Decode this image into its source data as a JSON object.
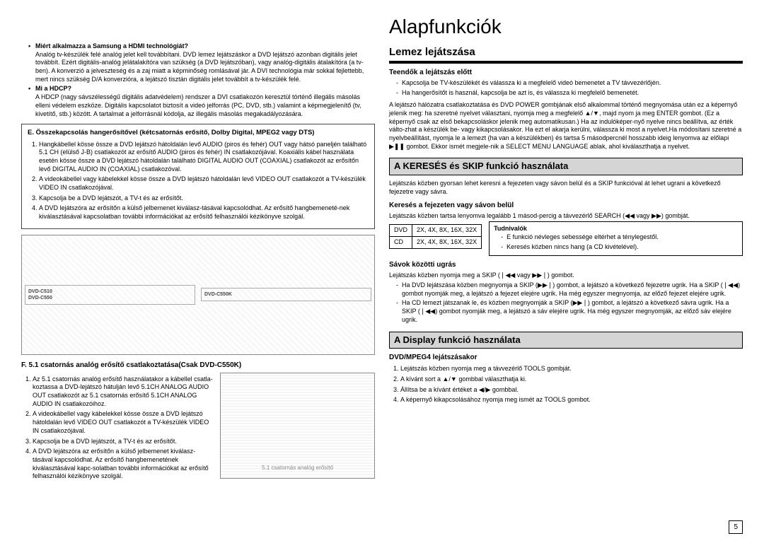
{
  "left": {
    "q1_title": "Miért alkalmazza a Samsung a HDMI technológiát?",
    "q1_body": "Analóg tv-készülék felé analóg jelet kell továbbítani. DVD lemez lejátszáskor a DVD lejátszó azonban digitális jelet továbbít. Ezért digitális-analóg jelátalakítóra van szükség (a DVD lejátszóban), vagy analóg-digitális átalakítóra (a tv-ben). A konverzió a jelveszteség és a zaj miatt a képminőség romlásával jár. A DVI technológia már sokkal fejlettebb, mert nincs szükség D/A konverzióra, a lejátszó tisztán digitális jelet továbbít a tv-készülék felé.",
    "q2_title": "Mi a HDCP?",
    "q2_body": "A HDCP (nagy sávszélességű digitális adatvédelem) rendszer a DVI csatlakozón keresztül történő illegális másolás elleni védelem eszköze. Digitális kapcsolatot biztosít a videó jelforrás (PC, DVD, stb.) valamint a képmegjelenítő (tv, kivetítő, stb.) között. A tartalmat a jelforrásnál kódolja, az illegális másolás megakadályozására.",
    "sectionE_title": "E. Összekapcsolás hangerősítővel (kétcsatornás erősítő, Dolby Digital, MPEG2 vagy DTS)",
    "sectionE_items": [
      "Hangkábellel kösse össze a DVD lejátszó hátoldalán levő AUDIO (piros és fehér) OUT vagy hátsó paneljén található 5.1 CH (elülső J-B) csatlakozót az erősítő AUDIO (piros és fehér) IN csatlakozójával. Koaxiális kábel használata esetén kösse össze a DVD lejátszó hátoldalán található DIGITAL AUDIO OUT (COAXIAL) csatlakozót az erősítőn levő DIGITAL AUDIO IN (COAXIAL) csatlakozóval.",
      "A videokábellel vagy kábelekkel kösse össze a DVD lejátszó hátoldalán levő VIDEO OUT csatlakozót a TV-készülék VIDEO IN csatlakozójával.",
      "Kapcsolja be a DVD lejátszót, a TV-t és az erősítőt.",
      "A DVD lejátszóra az erősítőn a külső jelbemenet kiválasz-tásával kapcsolódhat. Az erősítő hangbemeneté-nek kiválasztásával kapcsolatban további információkat az erősítő felhasználói kézikönyve szolgál."
    ],
    "diagram_labels": {
      "left": "DVD-C510\nDVD-C550",
      "right": "DVD-C550K"
    },
    "sectionF_title": "F. 5.1 csatornás analóg erősítő csatlakoztatása(Csak DVD-C550K)",
    "sectionF_items": [
      "Az 5.1 csatornás analóg erősítő használatakor a kábellel csatla-koztassa a DVD-lejátszó hátulján levő 5.1CH ANALOG AUDIO OUT csatlakozót az 5.1 csatornás erősítő 5.1CH ANALOG AUDIO IN csatlakozóihoz.",
      "A videokábellel vagy kábelekkel kösse össze a DVD lejátszó hátoldalán levő VIDEO OUT csatlakozót a TV-készülék VIDEO IN csatlakozójával.",
      "Kapcsolja be a DVD lejátszót, a TV-t és az erősítőt.",
      "A DVD lejátszóra az erősítőn a külső jelbemenet kiválasz-tásával kapcsolódhat. Az erősítő hangbemenetének kiválasztásával kapc-solatban további információkat az erősítő felhasználói kézikönyve szolgál."
    ],
    "sectionF_diagram_caption": "5.1 csatornás analóg erősítő"
  },
  "right": {
    "h1": "Alapfunkciók",
    "lemez_h2": "Lemez lejátszása",
    "teendok_h3": "Teendők a lejátszás előtt",
    "teendok_items": [
      "Kapcsolja be TV-készülékét és válassza ki a megfelelő videó bemenetet a TV távvezérlőjén.",
      "Ha hangerősítőt is használ, kapcsolja be azt is, és válassza ki megfelelő bemenetét."
    ],
    "lemez_p1": "A lejátszó hálózatra csatlakoztatása és DVD POWER gombjának első alkalommal történő megnyomása után ez a képernyő jelenik meg: ha szeretné nyelvet választani, nyomja meg a megfelelő ▲/▼, majd nyom ja meg ENTER gombot. (Ez a képernyő csak az első bekapcsoláskor jelenik meg automatikusan.) Ha az indulóképer-nyő nyelve nincs beállítva, az érték válto-zhat a készülék be- vagy kikapcsolásakor. Ha ezt el akarja kerülni, válassza ki most a nyelvet.Ha módosítani szeretné a nyelvbeállítást, nyomja le a lemezt (ha van a készülékben) és tartsa 5 másodpercnél hosszabb ideig lenyomva az előlapi ▶❚❚ gombot. Ekkor ismét megjele-nik a SELECT MENU LANGUAGE ablak, ahol kiválaszthatja a nyelvet.",
    "kereses_h2": "A KERESÉS és SKIP funkció használata",
    "kereses_p": "Lejátszás közben gyorsan lehet keresni a fejezeten vagy sávon belül és a SKIP funkcióval át lehet ugrani a következő fejezetre vagy sávra.",
    "kereses_h3": "Keresés a fejezeten vagy sávon belül",
    "kereses_p2": "Lejátszás közben tartsa lenyomva legalább 1 másod-percig a távvezérlő SEARCH (◀◀ vagy ▶▶) gombját.",
    "speed_rows": [
      [
        "DVD",
        "2X, 4X, 8X, 16X, 32X"
      ],
      [
        "CD",
        "2X, 4X, 8X, 16X, 32X"
      ]
    ],
    "tudnivalok_title": "Tudnivalók",
    "tudnivalok_items": [
      "E funkció névleges sebessége eltérhet a ténylegestől.",
      "Keresés közben nincs hang (a CD kivételével)."
    ],
    "savok_h3": "Sávok közötti ugrás",
    "savok_p": "Lejátszás közben nyomja meg a SKIP (❘◀◀ vagy ▶▶❘) gombot.",
    "savok_items": [
      "Ha DVD lejátszása közben megnyomja a SKIP (▶▶❘) gombot, a lejátszó a következő fejezetre ugrik. Ha a SKIP (❘◀◀) gombot nyomják meg, a lejátszó a fejezet elejére ugrik. Ha még egyszer megnyomja, az előző fejezet elejére ugrik.",
      "Ha CD lemezt játszanak le, és közben megnyomják a SKIP (▶▶❘) gombot, a lejátszó a következő sávra ugrik. Ha a SKIP (❘◀◀) gombot nyomják meg, a lejátszó a sáv elejére ugrik. Ha még egyszer megnyomják, az előző sáv elejére ugrik."
    ],
    "display_h2": "A Display funkció használata",
    "display_h3": "DVD/MPEG4 lejátszásakor",
    "display_items": [
      "Lejátszás közben nyomja meg a távvezérlő TOOLS gombját.",
      "A kívánt sort a ▲/▼ gombbal választhatja ki.",
      "Állítsa be a kívánt értéket a ◀/▶ gombbal.",
      "A képernyő kikapcsolásához nyomja meg ismét az TOOLS gombot."
    ]
  },
  "page_number": "5"
}
